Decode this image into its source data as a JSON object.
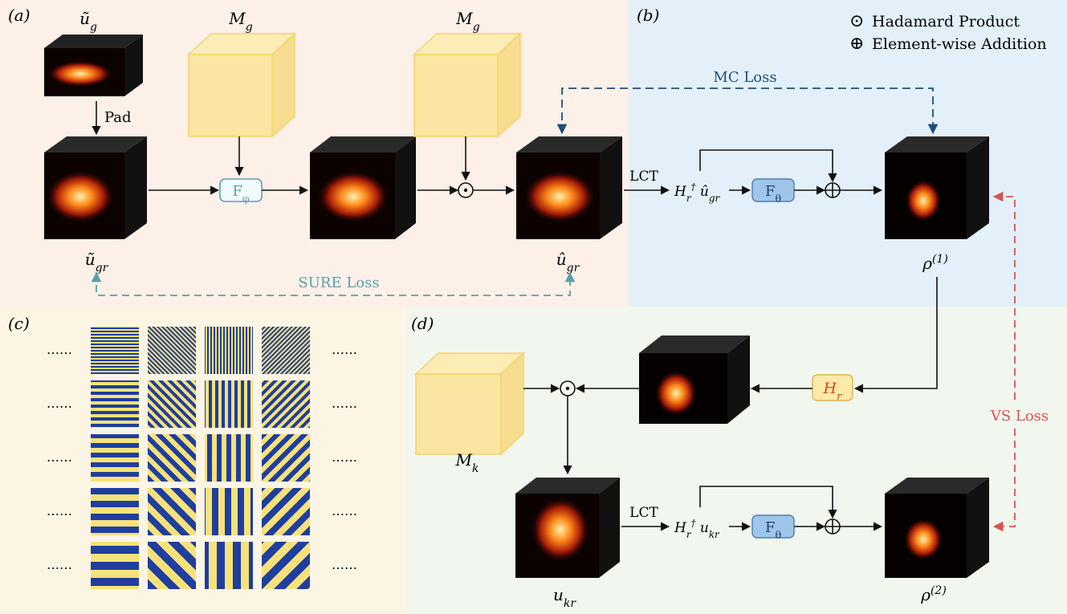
{
  "panels": {
    "a": {
      "label": "(a)",
      "bg": "#fdf0e8"
    },
    "b": {
      "label": "(b)",
      "bg": "#e4f0f9"
    },
    "c": {
      "label": "(c)",
      "bg": "#fdf5e4"
    },
    "d": {
      "label": "(d)",
      "bg": "#f1f7ee"
    }
  },
  "legend": {
    "hadamard_symbol": "⊙",
    "hadamard": "Hadamard Product",
    "addition_symbol": "⊕",
    "addition": "Element-wise Addition"
  },
  "a": {
    "u_g": "ũ_g",
    "pad": "Pad",
    "u_gr": "ũ_gr",
    "mask1": "M_g",
    "mask2": "M_g",
    "f_phi": "F_φ",
    "uhat_gr": "û_gr",
    "sure_loss": "SURE Loss"
  },
  "b": {
    "lct": "LCT",
    "h_expr": "H_r^† û_gr",
    "f_theta": "F_θ",
    "rho1": "ρ^(1)",
    "mc_loss": "MC Loss"
  },
  "c": {
    "dots": "……",
    "rows": 5,
    "cols": 4
  },
  "d": {
    "mask": "M_k",
    "h_r": "H_r",
    "u_kr": "u_kr",
    "lct": "LCT",
    "h_expr": "H_r^† u_kr",
    "f_theta": "F_θ",
    "rho2": "ρ^(2)",
    "vs_loss": "VS Loss"
  },
  "colors": {
    "sure": "#5aa0ad",
    "mc": "#1f4e79",
    "vs": "#d9534f",
    "f_phi_border": "#5aa0ad",
    "f_theta_fill": "#9fc5e8",
    "h_r_fill": "#fde9a8",
    "h_r_text": "#d04a2a",
    "stripe_blue": "#1f3e9e",
    "stripe_yellow": "#f6e27a",
    "mask_fill": "#fbe5a2"
  }
}
